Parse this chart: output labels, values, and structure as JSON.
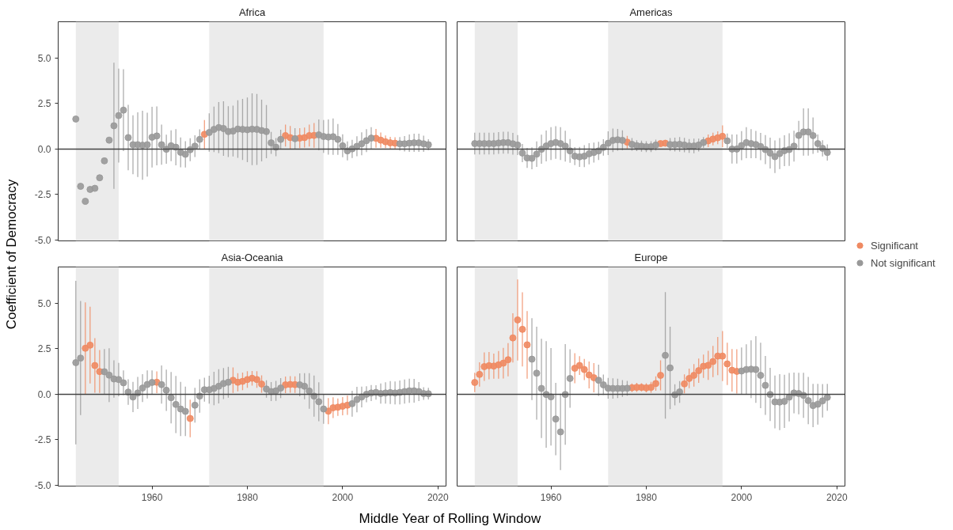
{
  "chart_data": [
    {
      "type": "scatter",
      "title": "Africa",
      "ylabel": "Coefficient of Democracy",
      "xlim": [
        1940.3,
        2021.7
      ],
      "ylim": [
        -5.05,
        7.0
      ],
      "yticks": [
        {
          "value": -5,
          "label": "-5.0"
        },
        {
          "value": -2.5,
          "label": "-2.5"
        },
        {
          "value": 0,
          "label": "0.0"
        },
        {
          "value": 2.5,
          "label": "2.5"
        },
        {
          "value": 5,
          "label": "5.0"
        }
      ],
      "tick_labels": "y",
      "marker": "circle",
      "legend": "right",
      "bands": [
        {
          "axis": "x",
          "from": 1944,
          "to": 1953,
          "color": "#ebebeb"
        },
        {
          "axis": "x",
          "from": 1972,
          "to": 1996,
          "color": "#ebebeb"
        }
      ],
      "ref_lines": [
        {
          "axis": "y",
          "value": 0,
          "color": "#444444"
        }
      ],
      "series": [
        {
          "name": "Significant",
          "color": "#ef8a62",
          "x": [
            1971,
            1988,
            1989,
            1991,
            1992,
            1993,
            1994,
            2007,
            2008,
            2009,
            2010,
            2011
          ],
          "values": [
            0.81,
            0.74,
            0.63,
            0.6,
            0.63,
            0.74,
            0.75,
            0.59,
            0.49,
            0.4,
            0.34,
            0.32
          ],
          "errors": [
            0.79,
            0.6,
            0.64,
            0.55,
            0.55,
            0.6,
            0.68,
            0.52,
            0.42,
            0.35,
            0.33,
            0.33
          ]
        },
        {
          "name": "Not significant",
          "color": "#999999",
          "x": [
            1944,
            1945,
            1946,
            1947,
            1948,
            1949,
            1950,
            1951,
            1952,
            1953,
            1954,
            1955,
            1956,
            1957,
            1958,
            1959,
            1960,
            1961,
            1962,
            1963,
            1964,
            1965,
            1966,
            1967,
            1968,
            1969,
            1970,
            1972,
            1973,
            1974,
            1975,
            1976,
            1977,
            1978,
            1979,
            1980,
            1981,
            1982,
            1983,
            1984,
            1985,
            1986,
            1987,
            1990,
            1995,
            1996,
            1997,
            1998,
            1999,
            2000,
            2001,
            2002,
            2003,
            2004,
            2005,
            2006,
            2012,
            2013,
            2014,
            2015,
            2016,
            2017,
            2018
          ],
          "values": [
            1.65,
            -2.05,
            -2.87,
            -2.22,
            -2.16,
            -1.58,
            -0.65,
            0.49,
            1.28,
            1.84,
            2.14,
            0.63,
            0.24,
            0.24,
            0.21,
            0.24,
            0.65,
            0.72,
            0.24,
            -0.01,
            0.18,
            0.1,
            -0.18,
            -0.29,
            -0.04,
            0.16,
            0.53,
            0.91,
            1.08,
            1.18,
            1.13,
            0.96,
            0.99,
            1.1,
            1.08,
            1.06,
            1.09,
            1.08,
            1.02,
            0.96,
            0.34,
            0.1,
            0.53,
            0.57,
            0.78,
            0.69,
            0.66,
            0.68,
            0.53,
            0.18,
            -0.1,
            0.01,
            0.15,
            0.29,
            0.46,
            0.6,
            0.29,
            0.29,
            0.32,
            0.34,
            0.34,
            0.29,
            0.24
          ],
          "errors": [
            null,
            null,
            null,
            null,
            null,
            null,
            null,
            null,
            3.47,
            2.58,
            2.25,
            1.8,
            1.62,
            1.78,
            1.9,
            1.76,
            1.67,
            1.62,
            1.1,
            0.8,
            0.85,
            1.0,
            0.82,
            0.72,
            0.63,
            0.6,
            0.55,
            1.05,
            1.25,
            1.4,
            1.5,
            1.4,
            1.4,
            1.58,
            1.68,
            1.78,
            1.97,
            1.95,
            1.7,
            1.46,
            0.6,
            0.5,
            0.53,
            0.58,
            0.85,
            0.9,
            0.97,
            1.0,
            0.85,
            0.63,
            0.52,
            0.5,
            0.55,
            0.63,
            0.63,
            0.6,
            0.37,
            0.42,
            0.48,
            0.5,
            0.5,
            0.45,
            0.3
          ]
        }
      ]
    },
    {
      "type": "scatter",
      "title": "Americas",
      "xlim": [
        1940.3,
        2021.7
      ],
      "ylim": [
        -5.05,
        7.0
      ],
      "tick_labels": false,
      "marker": "circle",
      "bands": [
        {
          "axis": "x",
          "from": 1944,
          "to": 1953,
          "color": "#ebebeb"
        },
        {
          "axis": "x",
          "from": 1972,
          "to": 1996,
          "color": "#ebebeb"
        }
      ],
      "ref_lines": [
        {
          "axis": "y",
          "value": 0,
          "color": "#444444"
        }
      ],
      "series": [
        {
          "color": "#ef8a62",
          "x": [
            1976,
            1983,
            1984,
            1993,
            1994,
            1995,
            1996
          ],
          "values": [
            0.38,
            0.3,
            0.32,
            0.45,
            0.55,
            0.62,
            0.7
          ],
          "errors": [
            0.35,
            0.15,
            0.15,
            0.35,
            0.35,
            0.35,
            0.6
          ]
        },
        {
          "color": "#999999",
          "x": [
            1944,
            1945,
            1946,
            1947,
            1948,
            1949,
            1950,
            1951,
            1952,
            1953,
            1954,
            1955,
            1956,
            1957,
            1958,
            1959,
            1960,
            1961,
            1962,
            1963,
            1964,
            1965,
            1966,
            1967,
            1968,
            1969,
            1970,
            1971,
            1972,
            1973,
            1974,
            1975,
            1977,
            1978,
            1979,
            1980,
            1981,
            1982,
            1985,
            1986,
            1987,
            1988,
            1989,
            1990,
            1991,
            1992,
            1997,
            1998,
            1999,
            2000,
            2001,
            2002,
            2003,
            2004,
            2005,
            2006,
            2007,
            2008,
            2009,
            2010,
            2011,
            2012,
            2013,
            2014,
            2015,
            2016,
            2017,
            2018
          ],
          "values": [
            0.3,
            0.3,
            0.3,
            0.3,
            0.3,
            0.33,
            0.35,
            0.35,
            0.29,
            0.22,
            -0.22,
            -0.49,
            -0.51,
            -0.28,
            -0.01,
            0.17,
            0.3,
            0.36,
            0.3,
            0.16,
            -0.1,
            -0.39,
            -0.43,
            -0.39,
            -0.26,
            -0.19,
            -0.1,
            0.09,
            0.32,
            0.48,
            0.51,
            0.48,
            0.26,
            0.19,
            0.16,
            0.13,
            0.13,
            0.22,
            0.25,
            0.25,
            0.26,
            0.22,
            0.17,
            0.17,
            0.22,
            0.36,
            0.45,
            0,
            0,
            0.19,
            0.35,
            0.3,
            0.25,
            0.14,
            -0.03,
            -0.22,
            -0.42,
            -0.25,
            -0.09,
            -0.03,
            0.16,
            0.75,
            0.94,
            0.94,
            0.74,
            0.3,
            0.04,
            -0.19
          ],
          "errors": [
            0.6,
            0.6,
            0.6,
            0.6,
            0.6,
            0.6,
            0.6,
            0.6,
            0.6,
            0.55,
            0.5,
            0.55,
            0.6,
            0.7,
            0.8,
            0.85,
            0.9,
            0.9,
            0.9,
            0.85,
            0.65,
            0.5,
            0.55,
            0.6,
            0.58,
            0.55,
            0.5,
            0.45,
            0.65,
            0.65,
            0.6,
            0.55,
            0.35,
            0.3,
            0.3,
            0.3,
            0.3,
            0.3,
            0.35,
            0.38,
            0.4,
            0.4,
            0.38,
            0.4,
            0.35,
            0.3,
            0.4,
            0.8,
            0.8,
            0.8,
            0.85,
            0.8,
            0.75,
            0.75,
            0.8,
            0.85,
            0.9,
            0.85,
            0.85,
            0.9,
            0.85,
            0.8,
            1.3,
            1.3,
            1.0,
            0.5,
            0.45,
            0.45
          ]
        }
      ]
    },
    {
      "type": "scatter",
      "title": "Asia-Oceania",
      "xlabel": "Middle Year of Rolling Window",
      "xlim": [
        1940.3,
        2021.7
      ],
      "ylim": [
        -5.05,
        7.0
      ],
      "xticks": [
        1960,
        1980,
        2000,
        2020
      ],
      "yticks": [
        {
          "value": -5,
          "label": "-5.0"
        },
        {
          "value": -2.5,
          "label": "-2.5"
        },
        {
          "value": 0,
          "label": "0.0"
        },
        {
          "value": 2.5,
          "label": "2.5"
        },
        {
          "value": 5,
          "label": "5.0"
        }
      ],
      "marker": "circle",
      "bands": [
        {
          "axis": "x",
          "from": 1944,
          "to": 1953,
          "color": "#ebebeb"
        },
        {
          "axis": "x",
          "from": 1972,
          "to": 1996,
          "color": "#ebebeb"
        }
      ],
      "ref_lines": [
        {
          "axis": "y",
          "value": 0,
          "color": "#444444"
        }
      ],
      "series": [
        {
          "color": "#ef8a62",
          "x": [
            1946,
            1947,
            1948,
            1949,
            1961,
            1968,
            1977,
            1978,
            1979,
            1980,
            1981,
            1982,
            1983,
            1988,
            1989,
            1990,
            1997,
            1998,
            1999,
            2000,
            2001
          ],
          "values": [
            2.53,
            2.7,
            1.58,
            1.25,
            0.66,
            -1.33,
            0.77,
            0.66,
            0.71,
            0.81,
            0.88,
            0.81,
            0.56,
            0.52,
            0.54,
            0.53,
            -0.93,
            -0.74,
            -0.71,
            -0.66,
            -0.6
          ],
          "errors": [
            2.52,
            2.11,
            1.5,
            1.18,
            0.6,
            1.03,
            0.7,
            0.5,
            0.48,
            0.46,
            0.4,
            0.46,
            0.48,
            0.46,
            0.46,
            0.46,
            0.72,
            0.57,
            0.48,
            0.5,
            0.53
          ]
        },
        {
          "color": "#999999",
          "x": [
            1944,
            1945,
            1950,
            1951,
            1952,
            1953,
            1954,
            1955,
            1956,
            1957,
            1958,
            1959,
            1960,
            1962,
            1963,
            1964,
            1965,
            1966,
            1967,
            1969,
            1970,
            1971,
            1972,
            1973,
            1974,
            1975,
            1976,
            1984,
            1985,
            1986,
            1987,
            1991,
            1992,
            1993,
            1994,
            1995,
            1996,
            2002,
            2003,
            2004,
            2005,
            2006,
            2007,
            2008,
            2009,
            2010,
            2011,
            2012,
            2013,
            2014,
            2015,
            2016,
            2017,
            2018
          ],
          "values": [
            1.74,
            1.99,
            1.24,
            1.05,
            0.84,
            0.81,
            0.63,
            0.12,
            -0.15,
            0.07,
            0.34,
            0.54,
            0.65,
            0.53,
            0.22,
            -0.19,
            -0.56,
            -0.81,
            -0.94,
            -0.6,
            -0.1,
            0.25,
            0.25,
            0.32,
            0.44,
            0.59,
            0.66,
            0.29,
            0.15,
            0.19,
            0.34,
            0.52,
            0.44,
            0.18,
            -0.1,
            -0.41,
            -0.81,
            -0.52,
            -0.29,
            -0.15,
            0,
            0.07,
            0.1,
            0.04,
            0.07,
            0.09,
            0.07,
            0.1,
            0.15,
            0.19,
            0.19,
            0.15,
            0.04,
            0.03
          ],
          "errors": [
            4.5,
            3.14,
            1.25,
            1.48,
            1.03,
            0.92,
            0.68,
            0.7,
            0.83,
            0.88,
            0.77,
            0.77,
            0.66,
            1.05,
            1.14,
            1.41,
            1.57,
            1.49,
            1.36,
            0.96,
            0.92,
            0.66,
            0.77,
            0.92,
            0.94,
            0.85,
            0.85,
            0.48,
            0.52,
            0.55,
            0.55,
            0.63,
            0.72,
            0.98,
            1.13,
            1.07,
            0.81,
            0.71,
            0.7,
            0.57,
            0.44,
            0.44,
            0.4,
            0.55,
            0.59,
            0.63,
            0.63,
            0.66,
            0.66,
            0.66,
            0.65,
            0.52,
            0.35,
            0.32
          ]
        }
      ]
    },
    {
      "type": "scatter",
      "title": "Europe",
      "xlim": [
        1940.3,
        2021.7
      ],
      "ylim": [
        -5.05,
        7.0
      ],
      "xticks": [
        1960,
        1980,
        2000,
        2020
      ],
      "tick_labels": "x",
      "marker": "circle",
      "bands": [
        {
          "axis": "x",
          "from": 1944,
          "to": 1953,
          "color": "#ebebeb"
        },
        {
          "axis": "x",
          "from": 1972,
          "to": 1996,
          "color": "#ebebeb"
        }
      ],
      "ref_lines": [
        {
          "axis": "y",
          "value": 0,
          "color": "#444444"
        }
      ],
      "series": [
        {
          "color": "#ef8a62",
          "x": [
            1944,
            1945,
            1946,
            1947,
            1948,
            1949,
            1950,
            1951,
            1952,
            1953,
            1954,
            1955,
            1965,
            1966,
            1967,
            1968,
            1969,
            1977,
            1978,
            1979,
            1980,
            1981,
            1982,
            1983,
            1988,
            1989,
            1990,
            1991,
            1992,
            1993,
            1994,
            1995,
            1996,
            1997,
            1998,
            1999
          ],
          "values": [
            0.65,
            1.09,
            1.52,
            1.57,
            1.55,
            1.62,
            1.71,
            1.9,
            3.1,
            4.09,
            3.57,
            2.72,
            1.43,
            1.58,
            1.36,
            1.06,
            0.91,
            0.36,
            0.38,
            0.38,
            0.35,
            0.38,
            0.59,
            1.04,
            0.57,
            0.87,
            1.04,
            1.3,
            1.54,
            1.59,
            1.8,
            2.1,
            2.1,
            1.67,
            1.32,
            1.26
          ],
          "errors": [
            0.53,
            0.67,
            0.78,
            0.75,
            0.69,
            0.76,
            0.84,
            0.91,
            1.35,
            2.23,
            2.04,
            1.86,
            0.83,
            0.52,
            0.58,
            0.74,
            0.8,
            0.23,
            0.25,
            0.22,
            0.25,
            0.3,
            0.4,
            0.83,
            0.52,
            0.54,
            0.62,
            0.67,
            0.64,
            0.8,
            0.86,
            1.05,
            1.38,
            1.16,
            1.17,
            1.22
          ]
        },
        {
          "color": "#999999",
          "x": [
            1956,
            1957,
            1958,
            1959,
            1960,
            1961,
            1962,
            1963,
            1964,
            1970,
            1971,
            1972,
            1973,
            1974,
            1975,
            1976,
            1984,
            1985,
            1986,
            1987,
            2000,
            2001,
            2002,
            2003,
            2004,
            2005,
            2006,
            2007,
            2008,
            2009,
            2010,
            2011,
            2012,
            2013,
            2014,
            2015,
            2016,
            2017,
            2018
          ],
          "values": [
            1.93,
            1.16,
            0.32,
            -0.01,
            -0.14,
            -1.36,
            -2.07,
            -0.01,
            0.87,
            0.77,
            0.52,
            0.33,
            0.32,
            0.32,
            0.32,
            0.33,
            2.14,
            1.45,
            -0.03,
            0.13,
            1.28,
            1.36,
            1.38,
            1.36,
            1.04,
            0.49,
            -0.01,
            -0.42,
            -0.43,
            -0.39,
            -0.16,
            0.07,
            0.04,
            -0.06,
            -0.35,
            -0.62,
            -0.55,
            -0.36,
            -0.17
          ],
          "errors": [
            2.25,
            2.56,
            2.73,
            2.93,
            2.68,
            1.99,
            2.1,
            2.77,
            1.61,
            0.86,
            0.56,
            0.57,
            0.56,
            0.53,
            0.46,
            0.41,
            3.48,
            2.27,
            0.58,
            0.6,
            1.29,
            1.39,
            1.59,
            1.83,
            1.8,
            1.62,
            1.46,
            1.45,
            1.54,
            1.46,
            1.33,
            1.12,
            1.14,
            1.24,
            1.3,
            1.19,
            1.12,
            0.92,
            0.74
          ]
        }
      ]
    }
  ]
}
